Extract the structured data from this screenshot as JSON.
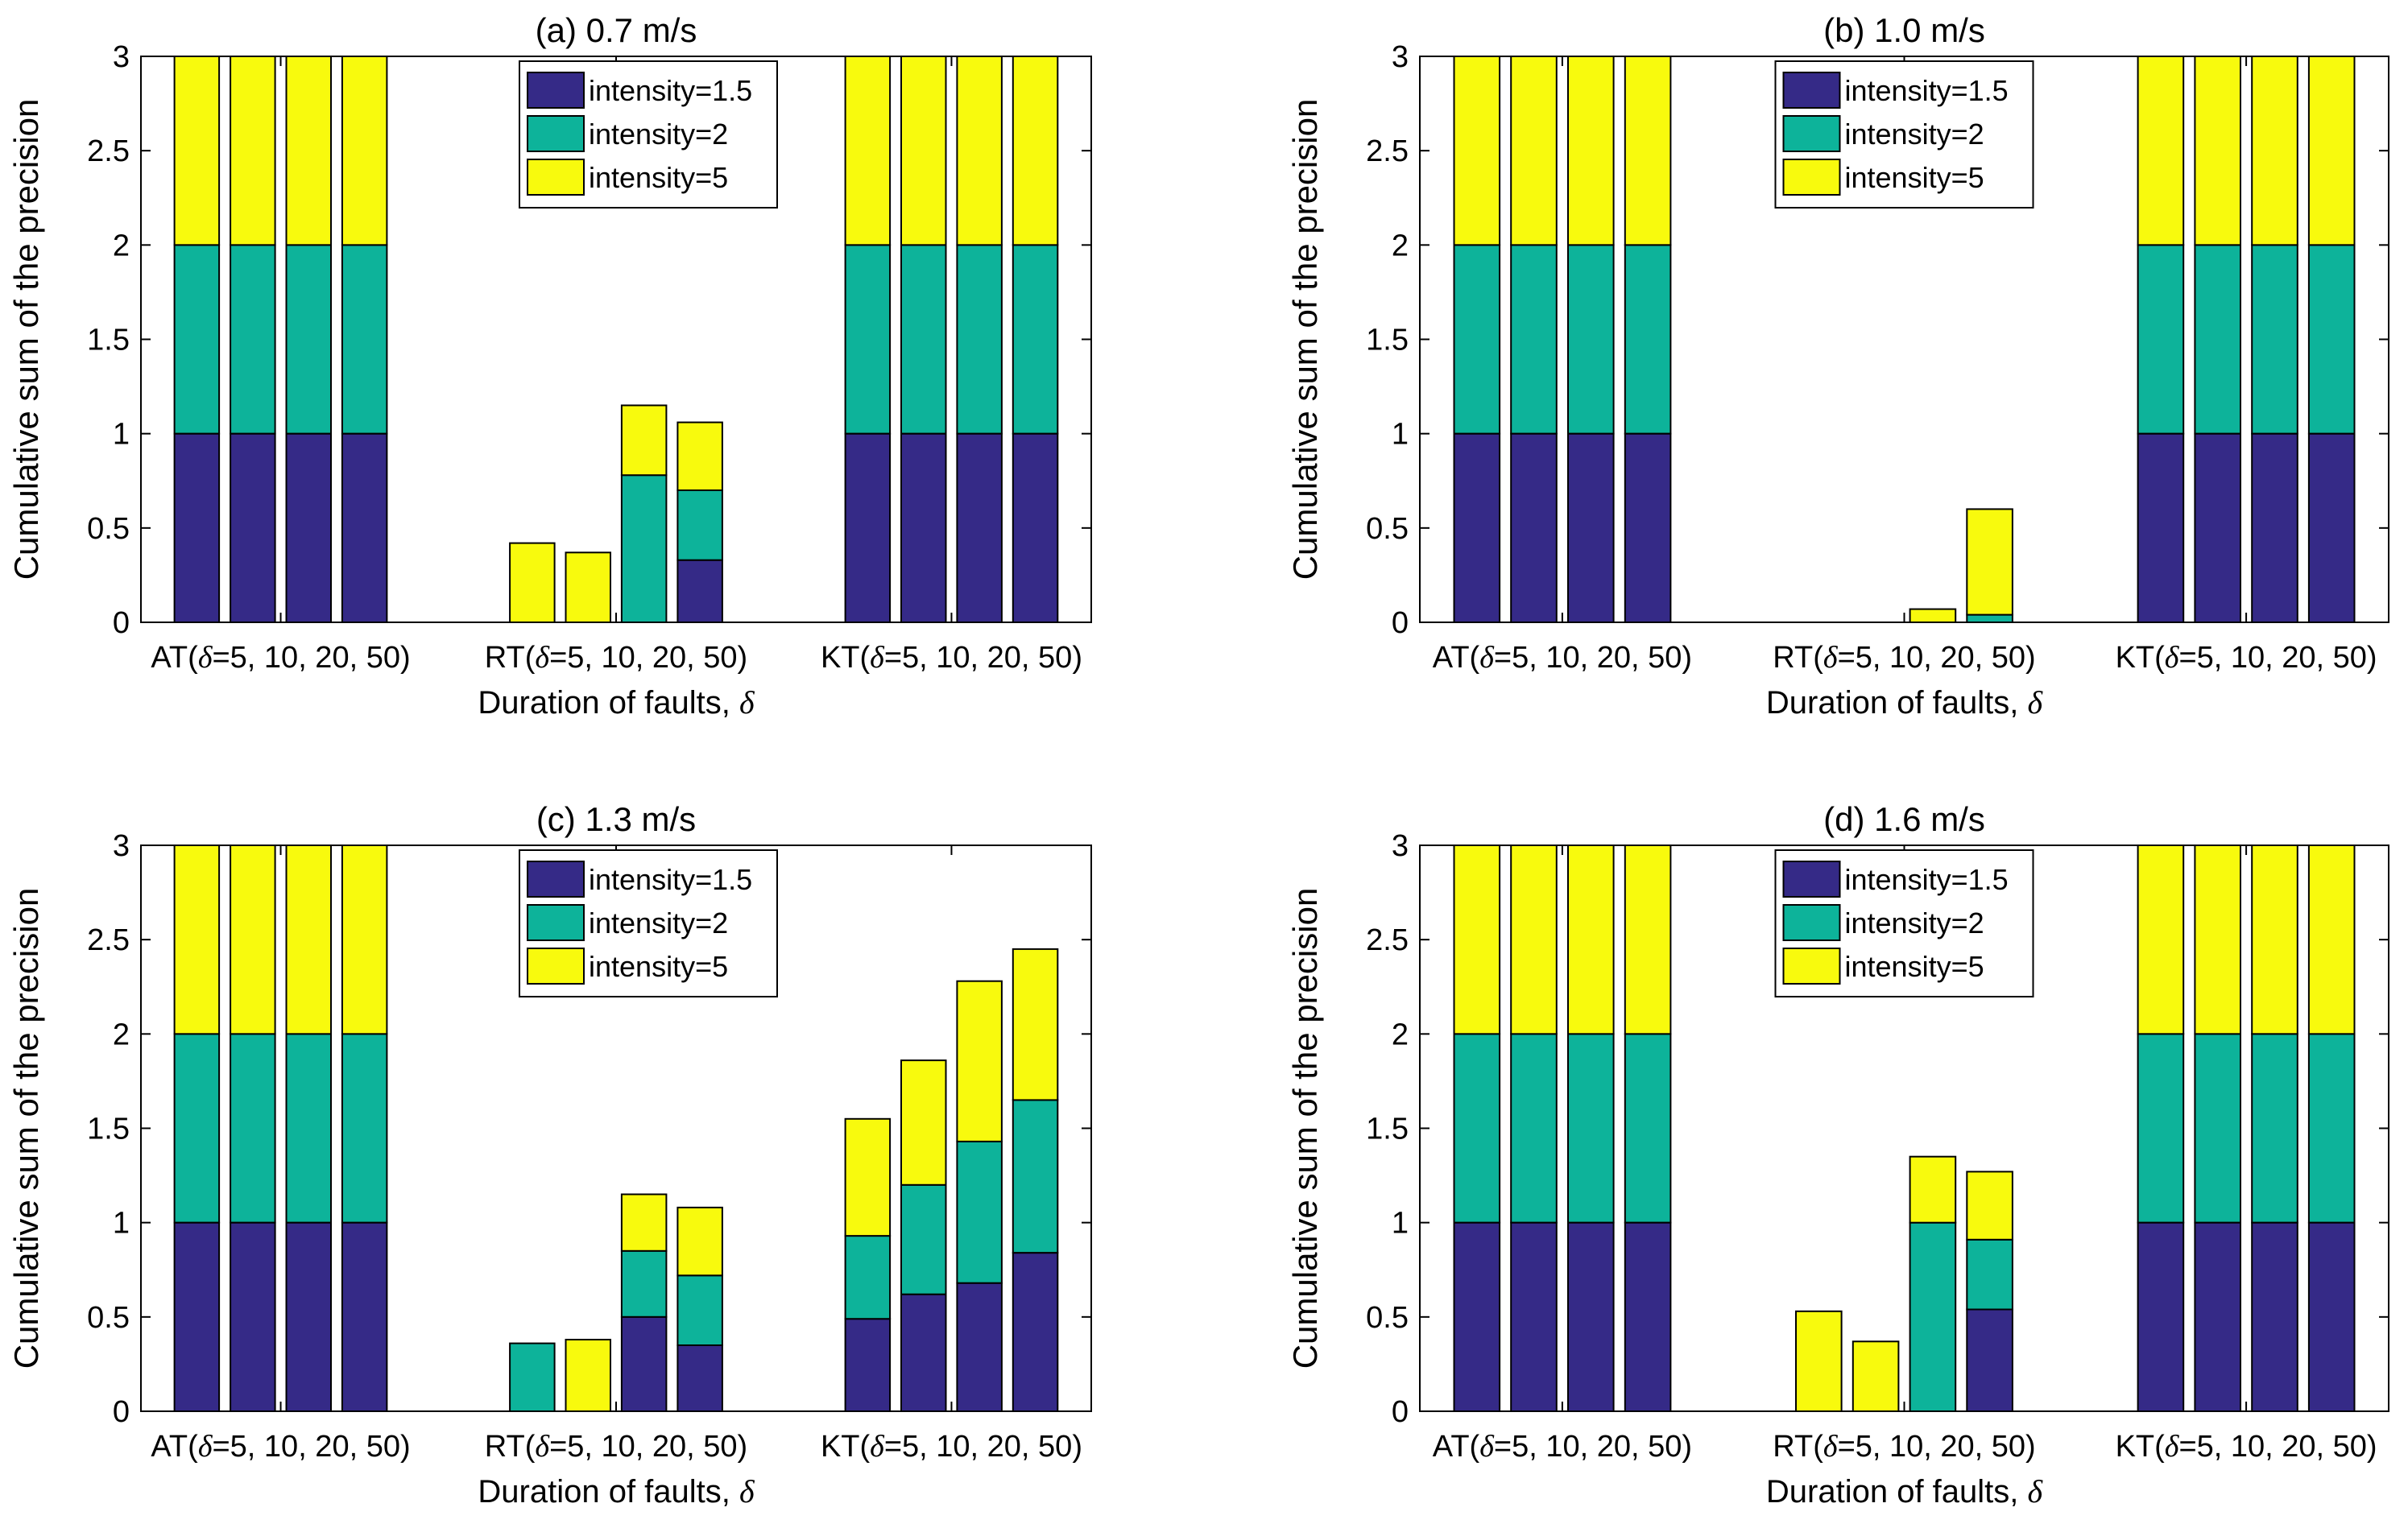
{
  "figure": {
    "shared": {
      "ylabel": "Cumulative sum of the precision",
      "xlabel_text": "Duration of faults, ",
      "xlabel_symbol": "δ",
      "group_labels": [
        {
          "prefix": "AT(",
          "symbol": "δ",
          "suffix": "=5, 10, 20, 50)"
        },
        {
          "prefix": "RT(",
          "symbol": "δ",
          "suffix": "=5, 10, 20, 50)"
        },
        {
          "prefix": "KT(",
          "symbol": "δ",
          "suffix": "=5, 10, 20, 50)"
        }
      ],
      "yticks": [
        "0",
        "0.5",
        "1",
        "1.5",
        "2",
        "2.5",
        "3"
      ],
      "legend": [
        "intensity=1.5",
        "intensity=2",
        "intensity=5"
      ],
      "colors": {
        "series1": "#352a87",
        "series2": "#0db39a",
        "series3": "#f8fa0d",
        "axis": "#000000"
      }
    }
  },
  "chart_data": [
    {
      "type": "bar",
      "stacked": true,
      "title": "(a) 0.7 m/s",
      "ylim": [
        0,
        3
      ],
      "categories": [
        "AT δ=5",
        "AT δ=10",
        "AT δ=20",
        "AT δ=50",
        "gap",
        "gap",
        "RT δ=5",
        "RT δ=10",
        "RT δ=20",
        "RT δ=50",
        "gap",
        "gap",
        "KT δ=5",
        "KT δ=10",
        "KT δ=20",
        "KT δ=50"
      ],
      "series": [
        {
          "name": "intensity=1.5",
          "values": [
            1,
            1,
            1,
            1,
            0,
            0,
            0,
            0,
            0,
            0.33,
            0,
            0,
            1,
            1,
            1,
            1
          ]
        },
        {
          "name": "intensity=2",
          "values": [
            1,
            1,
            1,
            1,
            0,
            0,
            0,
            0,
            0.78,
            0.37,
            0,
            0,
            1,
            1,
            1,
            1
          ]
        },
        {
          "name": "intensity=5",
          "values": [
            1,
            1,
            1,
            1,
            0,
            0,
            0.42,
            0.37,
            0.37,
            0.36,
            0,
            0,
            1,
            1,
            1,
            1
          ]
        }
      ],
      "legend_position": "top-center"
    },
    {
      "type": "bar",
      "stacked": true,
      "title": "(b) 1.0 m/s",
      "ylim": [
        0,
        3
      ],
      "categories": [
        "AT δ=5",
        "AT δ=10",
        "AT δ=20",
        "AT δ=50",
        "gap",
        "gap",
        "RT δ=5",
        "RT δ=10",
        "RT δ=20",
        "RT δ=50",
        "gap",
        "gap",
        "KT δ=5",
        "KT δ=10",
        "KT δ=20",
        "KT δ=50"
      ],
      "series": [
        {
          "name": "intensity=1.5",
          "values": [
            1,
            1,
            1,
            1,
            0,
            0,
            0,
            0,
            0,
            0,
            0,
            0,
            1,
            1,
            1,
            1
          ]
        },
        {
          "name": "intensity=2",
          "values": [
            1,
            1,
            1,
            1,
            0,
            0,
            0,
            0,
            0,
            0.04,
            0,
            0,
            1,
            1,
            1,
            1
          ]
        },
        {
          "name": "intensity=5",
          "values": [
            1,
            1,
            1,
            1,
            0,
            0,
            0,
            0,
            0.07,
            0.56,
            0,
            0,
            1,
            1,
            1,
            1
          ]
        }
      ],
      "legend_position": "top-center"
    },
    {
      "type": "bar",
      "stacked": true,
      "title": "(c) 1.3 m/s",
      "ylim": [
        0,
        3
      ],
      "categories": [
        "AT δ=5",
        "AT δ=10",
        "AT δ=20",
        "AT δ=50",
        "gap",
        "gap",
        "RT δ=5",
        "RT δ=10",
        "RT δ=20",
        "RT δ=50",
        "gap",
        "gap",
        "KT δ=5",
        "KT δ=10",
        "KT δ=20",
        "KT δ=50"
      ],
      "series": [
        {
          "name": "intensity=1.5",
          "values": [
            1,
            1,
            1,
            1,
            0,
            0,
            0,
            0,
            0.5,
            0.35,
            0,
            0,
            0.49,
            0.62,
            0.68,
            0.84
          ]
        },
        {
          "name": "intensity=2",
          "values": [
            1,
            1,
            1,
            1,
            0,
            0,
            0.36,
            0,
            0.35,
            0.37,
            0,
            0,
            0.44,
            0.58,
            0.75,
            0.81
          ]
        },
        {
          "name": "intensity=5",
          "values": [
            1,
            1,
            1,
            1,
            0,
            0,
            0,
            0.38,
            0.3,
            0.36,
            0,
            0,
            0.62,
            0.66,
            0.85,
            0.8
          ]
        }
      ],
      "legend_position": "top-center"
    },
    {
      "type": "bar",
      "stacked": true,
      "title": "(d) 1.6 m/s",
      "ylim": [
        0,
        3
      ],
      "categories": [
        "AT δ=5",
        "AT δ=10",
        "AT δ=20",
        "AT δ=50",
        "gap",
        "gap",
        "RT δ=5",
        "RT δ=10",
        "RT δ=20",
        "RT δ=50",
        "gap",
        "gap",
        "KT δ=5",
        "KT δ=10",
        "KT δ=20",
        "KT δ=50"
      ],
      "series": [
        {
          "name": "intensity=1.5",
          "values": [
            1,
            1,
            1,
            1,
            0,
            0,
            0,
            0,
            0,
            0.54,
            0,
            0,
            1,
            1,
            1,
            1
          ]
        },
        {
          "name": "intensity=2",
          "values": [
            1,
            1,
            1,
            1,
            0,
            0,
            0,
            0,
            1,
            0.37,
            0,
            0,
            1,
            1,
            1,
            1
          ]
        },
        {
          "name": "intensity=5",
          "values": [
            1,
            1,
            1,
            1,
            0,
            0,
            0.53,
            0.37,
            0.35,
            0.36,
            0,
            0,
            1,
            1,
            1,
            1
          ]
        }
      ],
      "legend_position": "top-center"
    }
  ]
}
